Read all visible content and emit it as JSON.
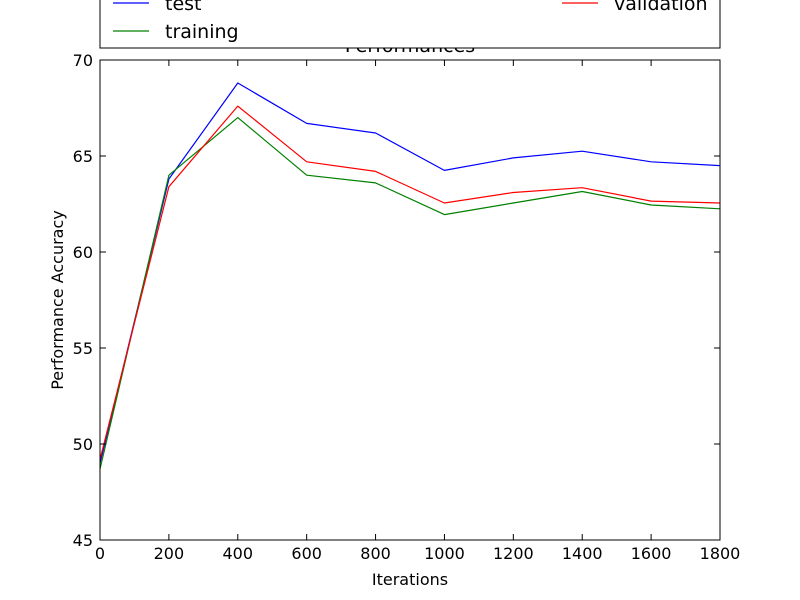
{
  "chart_data": {
    "type": "line",
    "title": "Performances",
    "xlabel": "Iterations",
    "ylabel": "Performance Accuracy",
    "xlim": [
      0,
      1800
    ],
    "ylim": [
      45,
      70
    ],
    "xticks": [
      0,
      200,
      400,
      600,
      800,
      1000,
      1200,
      1400,
      1600,
      1800
    ],
    "yticks": [
      45,
      50,
      55,
      60,
      65,
      70
    ],
    "grid": false,
    "legend_position": "top",
    "x": [
      0,
      200,
      400,
      600,
      800,
      1000,
      1200,
      1400,
      1600,
      1800
    ],
    "series": [
      {
        "name": "test",
        "color": "#0000ff",
        "values": [
          49.0,
          63.8,
          68.8,
          66.7,
          66.2,
          64.25,
          64.9,
          65.25,
          64.7,
          64.5
        ]
      },
      {
        "name": "training",
        "color": "#008000",
        "values": [
          48.7,
          64.0,
          67.0,
          64.0,
          63.6,
          61.95,
          62.55,
          63.15,
          62.45,
          62.25
        ]
      },
      {
        "name": "validation",
        "color": "#ff0000",
        "values": [
          49.2,
          63.4,
          67.6,
          64.7,
          64.2,
          62.55,
          63.1,
          63.35,
          62.65,
          62.55
        ]
      }
    ]
  }
}
